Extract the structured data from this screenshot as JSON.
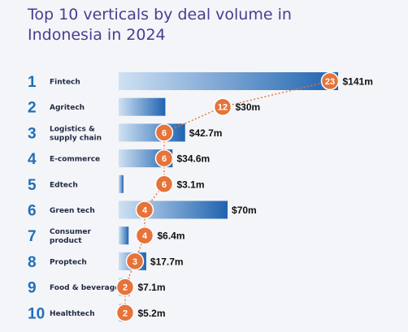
{
  "chart_data": {
    "type": "bar",
    "orientation": "horizontal",
    "title": "Top 10 verticals by deal volume in Indonesia in 2024",
    "ranks": [
      "1",
      "2",
      "3",
      "4",
      "5",
      "6",
      "7",
      "8",
      "9",
      "10"
    ],
    "categories": [
      [
        "Fintech"
      ],
      [
        "Agritech"
      ],
      [
        "Logistics &",
        "supply chain"
      ],
      [
        "E-commerce"
      ],
      [
        "Edtech"
      ],
      [
        "Green tech"
      ],
      [
        "Consumer",
        "product"
      ],
      [
        "Proptech"
      ],
      [
        "Food & beverage"
      ],
      [
        "Healthtech"
      ]
    ],
    "series": [
      {
        "values": [
          141,
          30,
          42.7,
          34.6,
          3.1,
          70,
          6.4,
          17.7,
          7.1,
          5.2
        ],
        "labels": [
          "$141m",
          "$30m",
          "$42.7m",
          "$34.6m",
          "$3.1m",
          "$70m",
          "$6.4m",
          "$17.7m",
          "$7.1m",
          "$5.2m"
        ]
      },
      {
        "values": [
          23,
          12,
          6,
          6,
          6,
          4,
          4,
          3,
          2,
          2
        ],
        "labels": [
          "23",
          "12",
          "6",
          "6",
          "6",
          "4",
          "4",
          "3",
          "2",
          "2"
        ]
      }
    ],
    "colors": {
      "bar_light": "#cfe1f3",
      "bar_dark": "#1f63b0",
      "bubble": "#e6733a",
      "connector": "#e6733a",
      "rank": "#1f6fb8",
      "title": "#4b3c91"
    },
    "xlim": [
      0,
      141
    ],
    "bubble_xlim": [
      0,
      23
    ],
    "grid": false,
    "legend": "none"
  }
}
